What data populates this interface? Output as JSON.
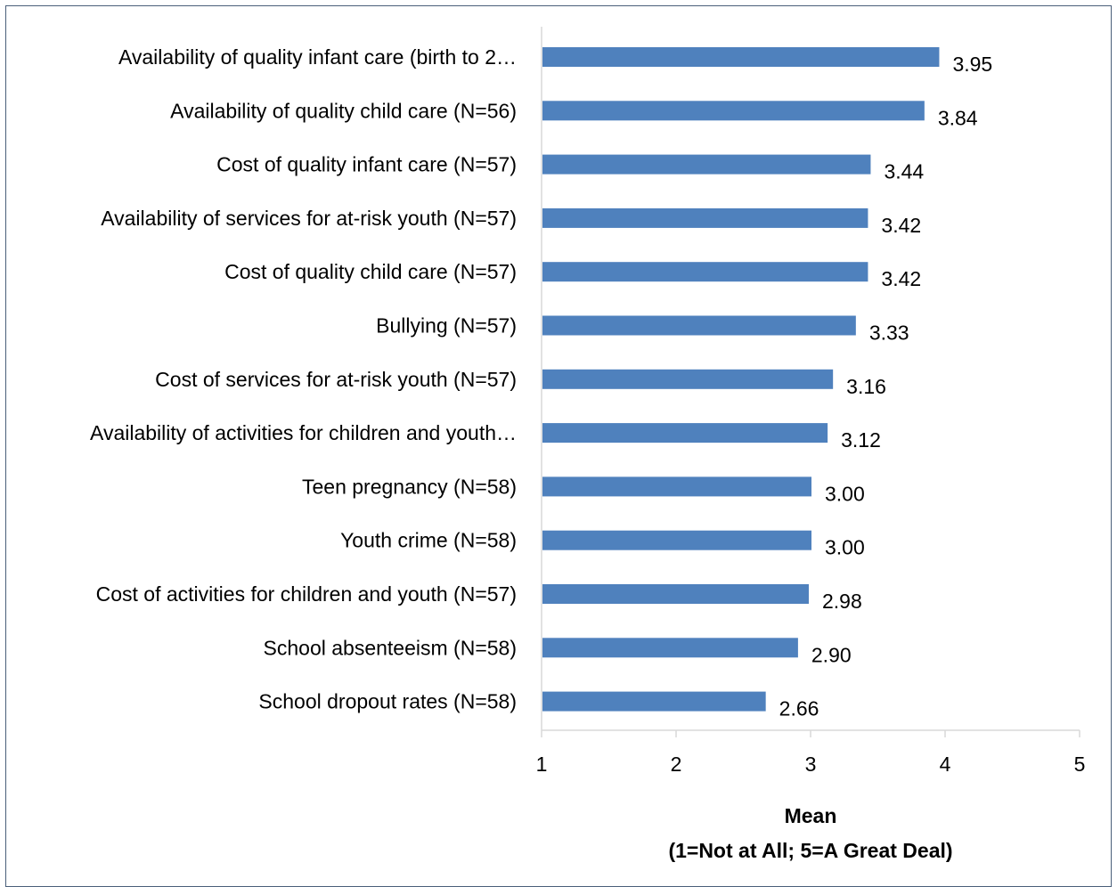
{
  "chart_data": {
    "type": "bar",
    "orientation": "horizontal",
    "categories": [
      "Availability of quality infant care (birth to 2…",
      "Availability of quality child care (N=56)",
      "Cost of quality infant care (N=57)",
      "Availability of services for at-risk youth (N=57)",
      "Cost of quality child care (N=57)",
      "Bullying (N=57)",
      "Cost of services for at-risk youth (N=57)",
      "Availability of activities for children and youth…",
      "Teen pregnancy (N=58)",
      "Youth crime (N=58)",
      "Cost of activities for children and youth (N=57)",
      "School absenteeism (N=58)",
      "School dropout rates (N=58)"
    ],
    "values": [
      3.95,
      3.84,
      3.44,
      3.42,
      3.42,
      3.33,
      3.16,
      3.12,
      3.0,
      3.0,
      2.98,
      2.9,
      2.66
    ],
    "data_labels": [
      "3.95",
      "3.84",
      "3.44",
      "3.42",
      "3.42",
      "3.33",
      "3.16",
      "3.12",
      "3.00",
      "3.00",
      "2.98",
      "2.90",
      "2.66"
    ],
    "xlim": [
      1,
      5
    ],
    "xticks": [
      "1",
      "2",
      "3",
      "4",
      "5"
    ],
    "xlabel": [
      "Mean",
      "(1=Not at All; 5=A Great Deal)"
    ],
    "ylabel": "",
    "title": "",
    "grid": false,
    "bar_color": "#4f81bd"
  }
}
